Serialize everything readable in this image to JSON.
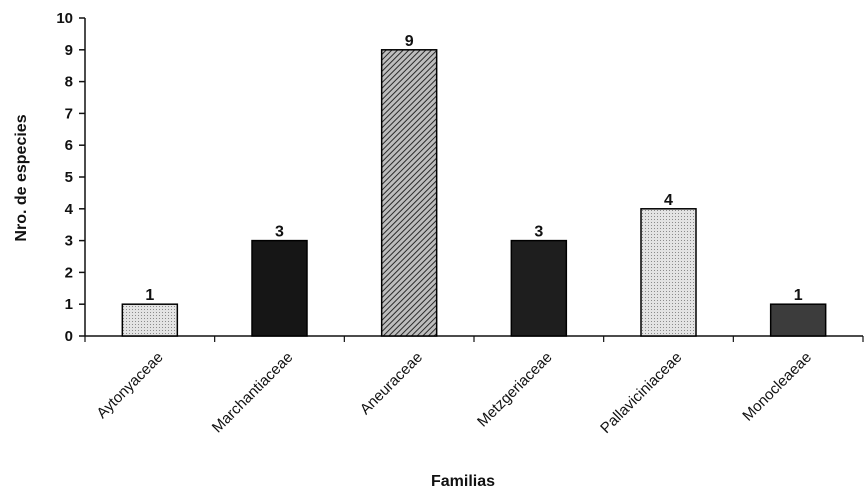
{
  "chart_data": {
    "type": "bar",
    "categories": [
      "Aytonyaceae",
      "Marchantiaceae",
      "Aneuraceae",
      "Metzgeriaceae",
      "Pallaviciniaceae",
      "Monocleaeae"
    ],
    "values": [
      1,
      3,
      9,
      3,
      4,
      1
    ],
    "data_labels": [
      "1",
      "3",
      "9",
      "3",
      "4",
      "1"
    ],
    "title": "",
    "xlabel": "Familias",
    "ylabel": "Nro. de especies",
    "ylim": [
      0,
      10
    ],
    "yticks": [
      "0",
      "1",
      "2",
      "3",
      "4",
      "5",
      "6",
      "7",
      "8",
      "9",
      "10"
    ],
    "grid": false,
    "bar_fills": [
      "#6f6f6f",
      "#161616",
      "#8a8a8a",
      "#1e1e1e",
      "#cfcfcf",
      "#3c3c3c"
    ]
  }
}
